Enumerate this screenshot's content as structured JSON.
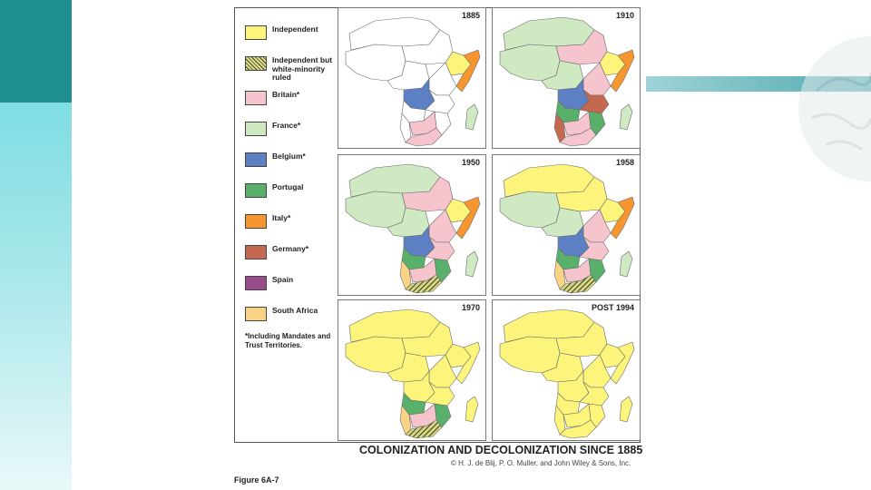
{
  "legend": [
    {
      "key": "independent",
      "label": "Independent",
      "color": "#fdf57b",
      "pattern": false
    },
    {
      "key": "white_minority",
      "label": "Independent but white-minority ruled",
      "color": "#d9d98a",
      "pattern": true
    },
    {
      "key": "britain",
      "label": "Britain*",
      "color": "#f6c4cc",
      "pattern": false
    },
    {
      "key": "france",
      "label": "France*",
      "color": "#cfe9c3",
      "pattern": false
    },
    {
      "key": "belgium",
      "label": "Belgium*",
      "color": "#5d7fc4",
      "pattern": false
    },
    {
      "key": "portugal",
      "label": "Portugal",
      "color": "#58b06a",
      "pattern": false
    },
    {
      "key": "italy",
      "label": "Italy*",
      "color": "#f7962e",
      "pattern": false
    },
    {
      "key": "germany",
      "label": "Germany*",
      "color": "#c4694f",
      "pattern": false
    },
    {
      "key": "spain",
      "label": "Spain",
      "color": "#9a4b8c",
      "pattern": false
    },
    {
      "key": "south_africa",
      "label": "South Africa",
      "color": "#fbd386",
      "pattern": false
    }
  ],
  "legend_note": "*Including Mandates and Trust Territories.",
  "panels": [
    {
      "year": "1885",
      "regions": {
        "north": "white",
        "west": "white",
        "sahara": "white",
        "horn": "italy",
        "east": "white",
        "ethiopia": "independent",
        "central": "white",
        "congo": "belgium",
        "east_lakes": "white",
        "angola": "white",
        "mozambique": "white",
        "southwest": "white",
        "southern": "britain",
        "tip": "britain",
        "madagascar": "france"
      }
    },
    {
      "year": "1910",
      "regions": {
        "north": "france",
        "west": "france",
        "sahara": "britain",
        "horn": "italy",
        "east": "britain",
        "ethiopia": "independent",
        "central": "france",
        "congo": "belgium",
        "east_lakes": "germany",
        "angola": "portugal",
        "mozambique": "portugal",
        "southwest": "germany",
        "southern": "britain",
        "tip": "britain",
        "madagascar": "france"
      }
    },
    {
      "year": "1950",
      "regions": {
        "north": "france",
        "west": "france",
        "sahara": "britain",
        "horn": "italy",
        "east": "britain",
        "ethiopia": "independent",
        "central": "france",
        "congo": "belgium",
        "east_lakes": "britain",
        "angola": "portugal",
        "mozambique": "portugal",
        "southwest": "south_africa",
        "southern": "britain",
        "tip": "white_minority",
        "madagascar": "france"
      }
    },
    {
      "year": "1958",
      "regions": {
        "north": "independent",
        "west": "france",
        "sahara": "independent",
        "horn": "italy",
        "east": "britain",
        "ethiopia": "independent",
        "central": "france",
        "congo": "belgium",
        "east_lakes": "britain",
        "angola": "portugal",
        "mozambique": "portugal",
        "southwest": "south_africa",
        "southern": "britain",
        "tip": "white_minority",
        "madagascar": "france"
      }
    },
    {
      "year": "1970",
      "regions": {
        "north": "independent",
        "west": "independent",
        "sahara": "independent",
        "horn": "independent",
        "east": "independent",
        "ethiopia": "independent",
        "central": "independent",
        "congo": "independent",
        "east_lakes": "independent",
        "angola": "portugal",
        "mozambique": "portugal",
        "southwest": "south_africa",
        "southern": "britain",
        "tip": "white_minority",
        "madagascar": "independent"
      }
    },
    {
      "year": "POST 1994",
      "regions": {
        "north": "independent",
        "west": "independent",
        "sahara": "independent",
        "horn": "independent",
        "east": "independent",
        "ethiopia": "independent",
        "central": "independent",
        "congo": "independent",
        "east_lakes": "independent",
        "angola": "independent",
        "mozambique": "independent",
        "southwest": "independent",
        "southern": "independent",
        "tip": "independent",
        "madagascar": "independent"
      }
    }
  ],
  "title": "COLONIZATION AND DECOLONIZATION SINCE 1885",
  "credit": "© H. J. de Blij, P. O. Muller, and John Wiley & Sons, Inc.",
  "figure_label": "Figure 6A-7"
}
